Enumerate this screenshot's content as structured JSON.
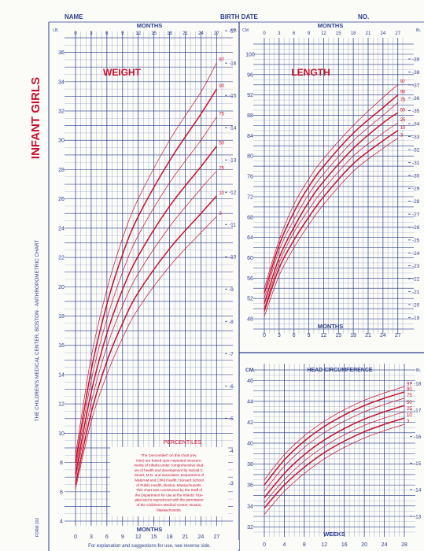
{
  "header": {
    "name_label": "NAME",
    "birth_date_label": "BIRTH DATE",
    "no_label": "NO."
  },
  "side": {
    "title": "INFANT GIRLS",
    "subtitle": "THE CHILDREN'S MEDICAL CENTER, BOSTON · ANTHROPOMETRIC CHART",
    "form_no": "FORM 202"
  },
  "colors": {
    "grid": "#2a3f8c",
    "curve": "#c8102e",
    "paper": "#fbfbf8"
  },
  "footer": {
    "explanation": "For explanation and suggestions for use, see reverse side."
  },
  "percentiles_note": {
    "title": "PERCENTILES",
    "lines": [
      "The \"percentiles\" on this chart (rev.",
      "inter) are based upon repeated measure-",
      "ments of infants under comprehensive stud-",
      "ies of health and development by Harold C.",
      "Stuart, M.D. and associates, Department of",
      "Maternal and Child Health, Harvard School",
      "of Public Health, Boston, Massachusetts.",
      "This chart was constructed by the Staff of",
      "the Department for use at the Infants' Hos-",
      "pital and is reproduced with the permission",
      "of the Children's Medical Center, Boston,",
      "Massachusetts."
    ]
  },
  "chart_data": [
    {
      "type": "line",
      "title": "WEIGHT",
      "x_unit_label": "MONTHS",
      "y_left_unit_label": "LB.",
      "y_right_unit_label": "KG.",
      "x_ticks": [
        "0",
        "3",
        "6",
        "9",
        "12",
        "15",
        "18",
        "21",
        "24",
        "27"
      ],
      "xlim": [
        0,
        28
      ],
      "ylim": [
        4,
        37
      ],
      "y_left_ticks": [
        4,
        6,
        8,
        10,
        12,
        14,
        16,
        18,
        20,
        22,
        24,
        26,
        28,
        30,
        32,
        34,
        36
      ],
      "y_right_ticks": [
        "3",
        "4",
        "5",
        "6",
        "7",
        "8",
        "9",
        "10",
        "11",
        "12",
        "13",
        "14",
        "15",
        "16",
        "17"
      ],
      "x": [
        0,
        3,
        6,
        9,
        12,
        18,
        24,
        27
      ],
      "series": [
        {
          "name": "97",
          "values": [
            8.5,
            15.2,
            19.8,
            23.3,
            26.0,
            30.0,
            33.3,
            35.3
          ]
        },
        {
          "name": "90",
          "values": [
            8.0,
            14.3,
            18.8,
            22.2,
            24.8,
            28.6,
            31.8,
            33.5
          ]
        },
        {
          "name": "75",
          "values": [
            7.6,
            13.6,
            17.8,
            21.0,
            23.5,
            27.1,
            30.0,
            31.6
          ]
        },
        {
          "name": "50",
          "values": [
            7.2,
            12.8,
            16.8,
            19.8,
            22.1,
            25.5,
            28.2,
            29.6
          ]
        },
        {
          "name": "25",
          "values": [
            6.9,
            12.1,
            15.9,
            18.7,
            20.9,
            24.1,
            26.7,
            27.9
          ]
        },
        {
          "name": "10",
          "values": [
            6.5,
            11.4,
            14.9,
            17.5,
            19.6,
            22.6,
            25.0,
            26.2
          ]
        },
        {
          "name": "3",
          "values": [
            6.2,
            10.8,
            14.0,
            16.5,
            18.5,
            21.4,
            23.7,
            24.8
          ]
        }
      ],
      "bold_series": [
        "90",
        "50",
        "10"
      ]
    },
    {
      "type": "line",
      "title": "LENGTH",
      "x_unit_label": "MONTHS",
      "y_left_unit_label": "CM",
      "y_right_unit_label": "IN.",
      "x_ticks": [
        "0",
        "3",
        "6",
        "9",
        "12",
        "15",
        "18",
        "21",
        "24",
        "27"
      ],
      "xlim": [
        0,
        28
      ],
      "ylim": [
        46,
        102
      ],
      "y_left_ticks": [
        48,
        52,
        56,
        60,
        64,
        68,
        72,
        76,
        80,
        84,
        88,
        92,
        96,
        100
      ],
      "y_right_ticks": [
        "19",
        "20",
        "21",
        "22",
        "23",
        "24",
        "25",
        "26",
        "27",
        "28",
        "29",
        "30",
        "31",
        "32",
        "33",
        "34",
        "35",
        "36",
        "37",
        "38",
        "39"
      ],
      "x": [
        0,
        3,
        6,
        9,
        12,
        18,
        24,
        27
      ],
      "series": [
        {
          "name": "97",
          "values": [
            54.0,
            63.5,
            70.5,
            75.5,
            79.5,
            86.0,
            91.5,
            94.0
          ]
        },
        {
          "name": "90",
          "values": [
            53.0,
            62.5,
            69.0,
            74.0,
            78.0,
            84.5,
            89.5,
            92.0
          ]
        },
        {
          "name": "75",
          "values": [
            52.0,
            61.5,
            67.5,
            72.5,
            76.5,
            83.0,
            88.0,
            90.5
          ]
        },
        {
          "name": "50",
          "values": [
            51.0,
            60.0,
            66.0,
            71.0,
            75.0,
            81.5,
            86.5,
            88.5
          ]
        },
        {
          "name": "25",
          "values": [
            50.0,
            59.0,
            65.0,
            69.5,
            73.5,
            80.0,
            84.5,
            86.5
          ]
        },
        {
          "name": "10",
          "values": [
            49.5,
            58.0,
            63.5,
            68.0,
            72.0,
            78.5,
            83.0,
            85.0
          ]
        },
        {
          "name": "3",
          "values": [
            48.5,
            56.5,
            62.0,
            66.5,
            70.5,
            77.0,
            81.5,
            83.5
          ]
        }
      ],
      "bold_series": [
        "90",
        "50",
        "10"
      ]
    },
    {
      "type": "line",
      "title": "HEAD CIRCUMFERENCE",
      "x_unit_label": "WEEKS",
      "y_left_unit_label": "CM.",
      "y_right_unit_label": "IN.",
      "x_ticks": [
        "0",
        "4",
        "8",
        "12",
        "16",
        "20",
        "24",
        "28"
      ],
      "xlim": [
        0,
        28
      ],
      "ylim": [
        31.5,
        47
      ],
      "y_left_ticks": [
        32,
        34,
        36,
        38,
        40,
        42,
        44,
        46
      ],
      "y_right_ticks": [
        "13",
        "14",
        "15",
        "16",
        "17",
        "18"
      ],
      "x": [
        0,
        4,
        8,
        12,
        16,
        20,
        24,
        28
      ],
      "series": [
        {
          "name": "97",
          "values": [
            36.5,
            38.9,
            40.7,
            42.1,
            43.2,
            44.1,
            44.8,
            45.4
          ]
        },
        {
          "name": "90",
          "values": [
            36.0,
            38.4,
            40.2,
            41.6,
            42.7,
            43.6,
            44.3,
            44.9
          ]
        },
        {
          "name": "75",
          "values": [
            35.4,
            37.8,
            39.6,
            41.0,
            42.1,
            43.0,
            43.7,
            44.3
          ]
        },
        {
          "name": "50",
          "values": [
            34.8,
            37.1,
            38.9,
            40.3,
            41.4,
            42.3,
            43.0,
            43.6
          ]
        },
        {
          "name": "25",
          "values": [
            34.3,
            36.5,
            38.3,
            39.7,
            40.8,
            41.7,
            42.4,
            43.0
          ]
        },
        {
          "name": "10",
          "values": [
            33.8,
            36.0,
            37.7,
            39.1,
            40.2,
            41.1,
            41.8,
            42.4
          ]
        },
        {
          "name": "3",
          "values": [
            33.2,
            35.4,
            37.1,
            38.5,
            39.6,
            40.5,
            41.2,
            41.8
          ]
        }
      ],
      "bold_series": [
        "90",
        "50",
        "10"
      ]
    }
  ]
}
